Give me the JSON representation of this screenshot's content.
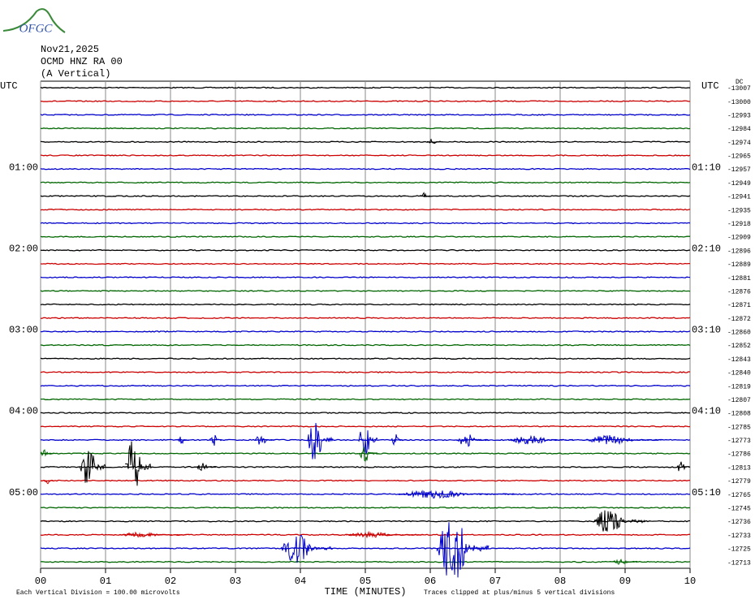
{
  "chart_data": {
    "type": "helicorder",
    "logo_text": "OFGC",
    "date": "Nov21,2025",
    "station": "OCMD HNZ RA 00",
    "component": "(A Vertical)",
    "dc_label": "DC",
    "colors": [
      "#000000",
      "#cc0000",
      "#0000cc",
      "#006600"
    ],
    "trace_offsets": [
      -13007,
      -13000,
      -12993,
      -12984,
      -12974,
      -12965,
      -12957,
      -12949,
      -12941,
      -12935,
      -12918,
      -12909,
      -12896,
      -12889,
      -12881,
      -12876,
      -12871,
      -12872,
      -12860,
      -12852,
      -12843,
      -12840,
      -12819,
      -12807,
      -12808,
      -12785,
      -12773,
      -12786,
      -12813,
      -12779,
      -12765,
      -12745,
      -12736,
      -12733,
      -12725,
      -12713
    ],
    "left_labels": [
      {
        "trace": 0,
        "label": "UTC"
      },
      {
        "trace": 6,
        "label": "01:00"
      },
      {
        "trace": 12,
        "label": "02:00"
      },
      {
        "trace": 18,
        "label": "03:00"
      },
      {
        "trace": 24,
        "label": "04:00"
      },
      {
        "trace": 30,
        "label": "05:00"
      }
    ],
    "right_labels": [
      {
        "trace": 0,
        "label": "UTC"
      },
      {
        "trace": 6,
        "label": "01:10"
      },
      {
        "trace": 12,
        "label": "02:10"
      },
      {
        "trace": 18,
        "label": "03:10"
      },
      {
        "trace": 24,
        "label": "04:10"
      },
      {
        "trace": 30,
        "label": "05:10"
      }
    ],
    "xlim": [
      0,
      10
    ],
    "xticks": [
      {
        "value": 0,
        "label": "00"
      },
      {
        "value": 1,
        "label": "01"
      },
      {
        "value": 2,
        "label": "02"
      },
      {
        "value": 3,
        "label": "03"
      },
      {
        "value": 4,
        "label": "04"
      },
      {
        "value": 5,
        "label": "05"
      },
      {
        "value": 6,
        "label": "06"
      },
      {
        "value": 7,
        "label": "07"
      },
      {
        "value": 8,
        "label": "08"
      },
      {
        "value": 9,
        "label": "09"
      },
      {
        "value": 10,
        "label": "10"
      }
    ],
    "x_label": "TIME (MINUTES)",
    "scale_note": "Each Vertical Division =  100.00 microvolts",
    "clip_note": "Traces clipped at plus/minus 5 vertical divisions",
    "bursts": [
      {
        "trace": 4,
        "start": 5.95,
        "end": 6.2,
        "amplitude": 0.2
      },
      {
        "trace": 8,
        "start": 5.85,
        "end": 6.0,
        "amplitude": 0.25
      },
      {
        "trace": 26,
        "start": 2.1,
        "end": 2.3,
        "amplitude": 0.4
      },
      {
        "trace": 26,
        "start": 2.6,
        "end": 2.8,
        "amplitude": 0.5
      },
      {
        "trace": 26,
        "start": 3.3,
        "end": 3.6,
        "amplitude": 0.4
      },
      {
        "trace": 26,
        "start": 4.1,
        "end": 4.5,
        "amplitude": 1.6
      },
      {
        "trace": 26,
        "start": 4.9,
        "end": 5.2,
        "amplitude": 1.6
      },
      {
        "trace": 26,
        "start": 5.4,
        "end": 5.6,
        "amplitude": 0.5
      },
      {
        "trace": 26,
        "start": 6.4,
        "end": 6.9,
        "amplitude": 0.5
      },
      {
        "trace": 26,
        "start": 7.2,
        "end": 8.2,
        "amplitude": 0.4
      },
      {
        "trace": 26,
        "start": 8.4,
        "end": 9.6,
        "amplitude": 0.4
      },
      {
        "trace": 27,
        "start": 0.0,
        "end": 0.2,
        "amplitude": 0.3
      },
      {
        "trace": 27,
        "start": 4.9,
        "end": 5.2,
        "amplitude": 0.6
      },
      {
        "trace": 28,
        "start": 0.6,
        "end": 1.0,
        "amplitude": 1.9
      },
      {
        "trace": 28,
        "start": 1.3,
        "end": 1.7,
        "amplitude": 2.5
      },
      {
        "trace": 28,
        "start": 2.4,
        "end": 2.7,
        "amplitude": 0.3
      },
      {
        "trace": 28,
        "start": 9.8,
        "end": 10.0,
        "amplitude": 0.5
      },
      {
        "trace": 29,
        "start": 0.05,
        "end": 0.2,
        "amplitude": 0.3
      },
      {
        "trace": 30,
        "start": 5.5,
        "end": 7.3,
        "amplitude": 0.3
      },
      {
        "trace": 32,
        "start": 8.5,
        "end": 9.3,
        "amplitude": 1.0
      },
      {
        "trace": 33,
        "start": 1.2,
        "end": 2.3,
        "amplitude": 0.2
      },
      {
        "trace": 33,
        "start": 4.7,
        "end": 5.9,
        "amplitude": 0.2
      },
      {
        "trace": 34,
        "start": 3.7,
        "end": 4.5,
        "amplitude": 1.1
      },
      {
        "trace": 34,
        "start": 6.1,
        "end": 6.9,
        "amplitude": 2.5
      },
      {
        "trace": 35,
        "start": 8.8,
        "end": 9.2,
        "amplitude": 0.2
      }
    ]
  }
}
